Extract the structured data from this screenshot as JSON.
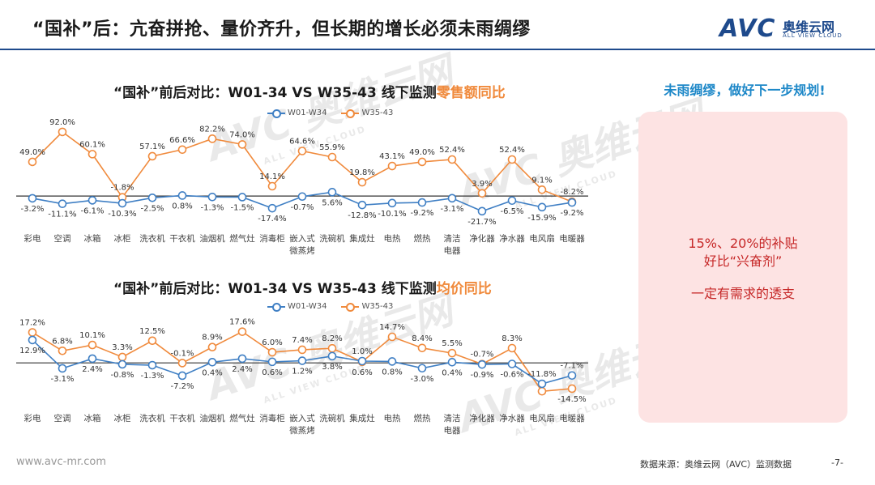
{
  "slide": {
    "title": "“国补”后：亢奋拼抢、量价齐升，但长期的增长必须未雨绸缪",
    "logo_cn": "奥维云网",
    "logo_en": "ALL VIEW CLOUD",
    "logo_mark": "AVC"
  },
  "right_panel": {
    "heading": "未雨绸缪，做好下一步规划!",
    "line1": "15%、20%的补贴",
    "line2": "好比“兴奋剂”",
    "line3": "一定有需求的透支"
  },
  "footer": {
    "url": "www.avc-mr.com",
    "source": "数据来源：奥维云网（AVC）监测数据",
    "page": "-7-"
  },
  "watermark": {
    "mark": "AVC 奥维云网",
    "sub": "ALL VIEW CLOUD"
  },
  "colors": {
    "blue": "#3f7fc4",
    "orange": "#f08a3c",
    "accent_blue": "#1e88c8",
    "box_red": "#c62828"
  },
  "chart_data": [
    {
      "type": "line",
      "title_main": "“国补”前后对比：W01-34 VS W35-43 线下监测",
      "title_highlight": "零售额同比",
      "categories": [
        "彩电",
        "空调",
        "冰箱",
        "冰柜",
        "洗衣机",
        "干衣机",
        "油烟机",
        "燃气灶",
        "消毒柜",
        "嵌入式微蒸烤",
        "洗碗机",
        "集成灶",
        "电热",
        "燃热",
        "清洁电器",
        "净化器",
        "净水器",
        "电风扇",
        "电暖器"
      ],
      "category_lines": [
        [
          "彩电"
        ],
        [
          "空调"
        ],
        [
          "冰箱"
        ],
        [
          "冰柜"
        ],
        [
          "洗衣机"
        ],
        [
          "干衣机"
        ],
        [
          "油烟机"
        ],
        [
          "燃气灶"
        ],
        [
          "消毒柜"
        ],
        [
          "嵌入式",
          "微蒸烤"
        ],
        [
          "洗碗机"
        ],
        [
          "集成灶"
        ],
        [
          "电热"
        ],
        [
          "燃热"
        ],
        [
          "清洁",
          "电器"
        ],
        [
          "净化器"
        ],
        [
          "净水器"
        ],
        [
          "电风扇"
        ],
        [
          "电暖器"
        ]
      ],
      "series": [
        {
          "name": "W01-W34",
          "color": "#3f7fc4",
          "values": [
            -3.2,
            -11.1,
            -6.1,
            -10.3,
            -2.5,
            0.8,
            -1.3,
            -1.5,
            -17.4,
            -0.7,
            5.6,
            -12.8,
            -10.1,
            -9.2,
            -3.1,
            -21.7,
            -6.5,
            -15.9,
            -9.2
          ]
        },
        {
          "name": "W35-43",
          "color": "#f08a3c",
          "values": [
            49.0,
            92.0,
            60.1,
            -1.8,
            57.1,
            66.6,
            82.2,
            74.0,
            14.1,
            64.6,
            55.9,
            19.8,
            43.1,
            49.0,
            52.4,
            3.9,
            52.4,
            9.1,
            -8.2
          ]
        }
      ],
      "labels": [
        [
          "-3.2%",
          "-11.1%",
          "-6.1%",
          "-10.3%",
          "-2.5%",
          "0.8%",
          "-1.3%",
          "-1.5%",
          "-17.4%",
          "-0.7%",
          "5.6%",
          "-12.8%",
          "-10.1%",
          "-9.2%",
          "-3.1%",
          "-21.7%",
          "-6.5%",
          "-15.9%",
          "-9.2%"
        ],
        [
          "49.0%",
          "92.0%",
          "60.1%",
          "-1.8%",
          "57.1%",
          "66.6%",
          "82.2%",
          "74.0%",
          "14.1%",
          "64.6%",
          "55.9%",
          "19.8%",
          "43.1%",
          "49.0%",
          "52.4%",
          "3.9%",
          "52.4%",
          "9.1%",
          "-8.2%"
        ]
      ],
      "ylim": [
        -30,
        100
      ],
      "legend_position": "top-center",
      "grid": false
    },
    {
      "type": "line",
      "title_main": "“国补”前后对比：W01-34 VS W35-43 线下监测",
      "title_highlight": "均价同比",
      "categories": [
        "彩电",
        "空调",
        "冰箱",
        "冰柜",
        "洗衣机",
        "干衣机",
        "油烟机",
        "燃气灶",
        "消毒柜",
        "嵌入式微蒸烤",
        "洗碗机",
        "集成灶",
        "电热",
        "燃热",
        "清洁电器",
        "净化器",
        "净水器",
        "电风扇",
        "电暖器"
      ],
      "category_lines": [
        [
          "彩电"
        ],
        [
          "空调"
        ],
        [
          "冰箱"
        ],
        [
          "冰柜"
        ],
        [
          "洗衣机"
        ],
        [
          "干衣机"
        ],
        [
          "油烟机"
        ],
        [
          "燃气灶"
        ],
        [
          "消毒柜"
        ],
        [
          "嵌入式",
          "微蒸烤"
        ],
        [
          "洗碗机"
        ],
        [
          "集成灶"
        ],
        [
          "电热"
        ],
        [
          "燃热"
        ],
        [
          "清洁",
          "电器"
        ],
        [
          "净化器"
        ],
        [
          "净水器"
        ],
        [
          "电风扇"
        ],
        [
          "电暖器"
        ]
      ],
      "series": [
        {
          "name": "W01-W34",
          "color": "#3f7fc4",
          "values": [
            12.9,
            -3.1,
            2.4,
            -0.8,
            -1.3,
            -7.2,
            0.4,
            2.4,
            0.6,
            1.2,
            3.8,
            1.0,
            0.8,
            -3.0,
            0.4,
            -0.9,
            -0.6,
            -11.8,
            -7.1
          ]
        },
        {
          "name": "W35-43",
          "color": "#f08a3c",
          "values": [
            17.2,
            6.8,
            10.1,
            3.3,
            12.5,
            -0.1,
            8.9,
            17.6,
            6.0,
            7.4,
            8.2,
            0.6,
            14.7,
            8.4,
            5.5,
            -0.7,
            8.3,
            -16.0,
            -14.5
          ]
        }
      ],
      "labels": [
        [
          "12.9%",
          "-3.1%",
          "2.4%",
          "-0.8%",
          "-1.3%",
          "-7.2%",
          "0.4%",
          "2.4%",
          "0.6%",
          "1.2%",
          "3.8%",
          "1.0%",
          "0.8%",
          "-3.0%",
          "0.4%",
          "-0.9%",
          "-0.6%",
          "-11.8%",
          "-7.1%"
        ],
        [
          "17.2%",
          "6.8%",
          "10.1%",
          "3.3%",
          "12.5%",
          "-0.1%",
          "8.9%",
          "17.6%",
          "6.0%",
          "7.4%",
          "8.2%",
          "0.6%",
          "14.7%",
          "8.4%",
          "5.5%",
          "-0.7%",
          "8.3%",
          "",
          "-14.5%"
        ]
      ],
      "ylim": [
        -20,
        22
      ],
      "legend_position": "top-center",
      "grid": false
    }
  ]
}
